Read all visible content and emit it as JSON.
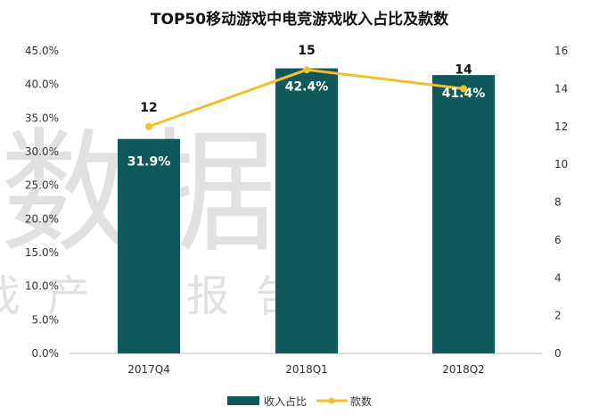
{
  "watermark": {
    "line1": "数据",
    "line2": "戏产业报告"
  },
  "chart_data": {
    "type": "bar+line",
    "title": "TOP50移动游戏中电竞游戏收入占比及款数",
    "categories": [
      "2017Q4",
      "2018Q1",
      "2018Q2"
    ],
    "series": [
      {
        "name": "收入占比",
        "type": "bar",
        "axis": "left",
        "values": [
          31.9,
          42.4,
          41.4
        ],
        "labels": [
          "31.9%",
          "42.4%",
          "41.4%"
        ],
        "color": "#0e5a5a"
      },
      {
        "name": "款数",
        "type": "line",
        "axis": "right",
        "values": [
          12,
          15,
          14
        ],
        "labels": [
          "12",
          "15",
          "14"
        ],
        "color": "#f2c02c"
      }
    ],
    "y_left": {
      "range": [
        0,
        45
      ],
      "ticks": [
        "0.0%",
        "5.0%",
        "10.0%",
        "15.0%",
        "20.0%",
        "25.0%",
        "30.0%",
        "35.0%",
        "40.0%",
        "45.0%"
      ]
    },
    "y_right": {
      "range": [
        0,
        16
      ],
      "ticks": [
        "0",
        "2",
        "4",
        "6",
        "8",
        "10",
        "12",
        "14",
        "16"
      ]
    },
    "grid": false,
    "legend": "bottom"
  }
}
